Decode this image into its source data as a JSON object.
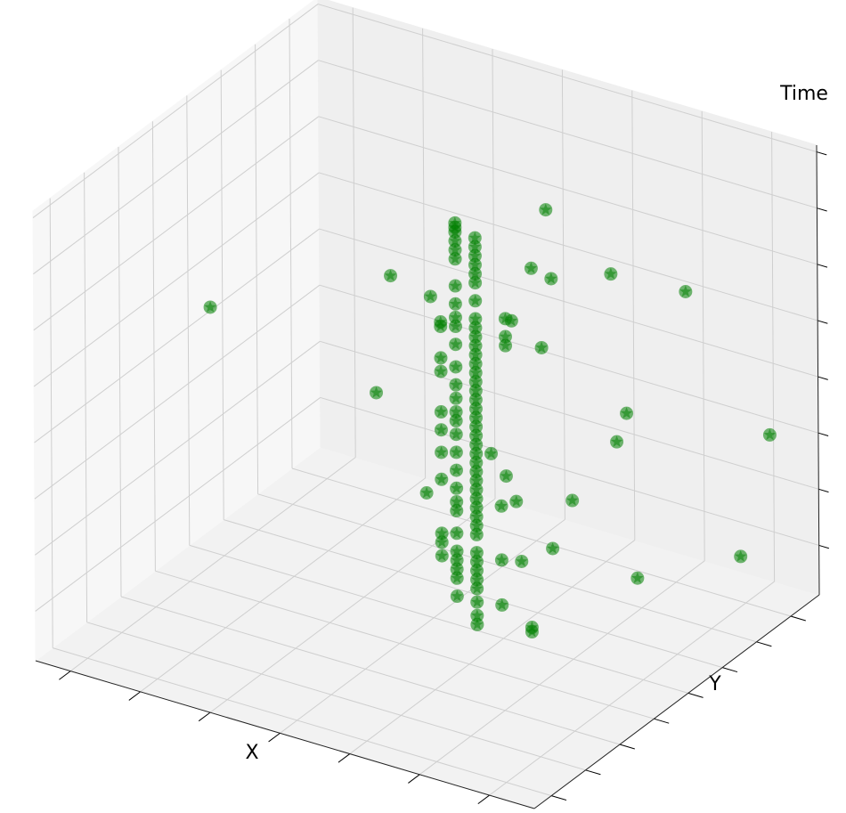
{
  "chart_data": {
    "type": "scatter3d",
    "xlabel": "X",
    "ylabel": "Y",
    "zlabel": "Time",
    "xlim": [
      0,
      10
    ],
    "ylim": [
      0,
      10
    ],
    "zlim": [
      0,
      10
    ],
    "xticks": [
      0.7,
      2.1,
      3.5,
      4.9,
      6.3,
      7.7,
      9.1
    ],
    "yticks": [
      0.6,
      1.8,
      3.0,
      4.2,
      5.4,
      6.6,
      7.8,
      9.0
    ],
    "zticks": [
      1.1,
      2.35,
      3.6,
      4.85,
      6.1,
      7.35,
      8.6,
      9.85
    ],
    "grid": true,
    "series": [
      {
        "color": "#008000",
        "x": [
          5.6,
          5.6,
          5.6,
          5.6,
          5.6,
          5.6,
          5.6,
          5.6,
          5.6,
          5.6,
          5.6,
          5.6,
          5.6,
          5.6,
          5.6,
          5.6,
          5.6,
          5.6,
          5.6,
          5.6,
          5.6,
          5.6,
          5.6,
          5.6,
          5.6,
          5.6,
          5.6,
          5.6,
          6,
          6,
          6,
          6,
          6,
          6,
          6,
          6,
          6,
          6,
          6,
          6,
          6,
          6,
          6,
          6,
          6,
          6,
          6,
          6,
          6,
          6,
          6,
          6,
          6,
          6,
          6,
          6,
          6,
          6,
          6,
          6,
          6,
          6,
          6,
          6,
          6,
          6,
          6,
          6,
          5.3,
          5.3,
          5.3,
          5.3,
          5.3,
          5.3,
          5.3,
          5.3,
          5.3,
          5.3,
          6.6,
          6.6,
          6.6,
          5.7,
          5.4,
          5.8,
          7.0,
          8.5,
          4.3,
          5.1,
          2.4,
          5.0,
          5.6,
          4.0,
          7.3,
          7.1,
          9.6,
          6.3,
          6.6,
          6.2,
          6.8,
          6.5,
          5.8,
          9.0,
          6.5,
          6.9,
          7.5,
          6.5,
          7.1,
          7.1,
          5.0,
          5.3
        ],
        "y": [
          5,
          5,
          5,
          5,
          5,
          5,
          5,
          5,
          5,
          5,
          5,
          5,
          5,
          5,
          5,
          5,
          5,
          5,
          5,
          5,
          5,
          5,
          5,
          5,
          5,
          5,
          5,
          5,
          5,
          5,
          5,
          5,
          5,
          5,
          5,
          5,
          5,
          5,
          5,
          5,
          5,
          5,
          5,
          5,
          5,
          5,
          5,
          5,
          5,
          5,
          5,
          5,
          5,
          5,
          5,
          5,
          5,
          5,
          5,
          5,
          5,
          5,
          5,
          5,
          5,
          5,
          5,
          5,
          5,
          5,
          5,
          5,
          5,
          5,
          5,
          5,
          5,
          5,
          5,
          5,
          5,
          8,
          8,
          8,
          8,
          8,
          5,
          5,
          2,
          8,
          8,
          5,
          8,
          8,
          9,
          5,
          5,
          8,
          5,
          5,
          8,
          9,
          5,
          5,
          8,
          5,
          5,
          5,
          5,
          5
        ],
        "z": [
          9.2,
          9.1,
          9.0,
          8.8,
          8.6,
          8.4,
          7.8,
          7.4,
          7.1,
          6.9,
          6.5,
          6.0,
          5.6,
          5.3,
          5.0,
          4.8,
          4.5,
          4.1,
          3.7,
          3.3,
          3.0,
          2.8,
          2.3,
          1.9,
          1.7,
          1.5,
          1.3,
          0.9,
          9.0,
          8.8,
          8.6,
          8.4,
          8.2,
          8.0,
          7.6,
          7.2,
          7.0,
          6.8,
          6.6,
          6.4,
          6.2,
          6.0,
          5.8,
          5.6,
          5.4,
          5.2,
          5.0,
          4.8,
          4.6,
          4.4,
          4.2,
          4.0,
          3.8,
          3.6,
          3.4,
          3.2,
          3.0,
          2.8,
          2.6,
          2.4,
          2.0,
          1.8,
          1.6,
          1.4,
          1.2,
          0.9,
          0.6,
          0.4,
          6.9,
          6.8,
          6.1,
          5.8,
          4.9,
          4.5,
          4.0,
          2.2,
          2.0,
          1.7,
          7.4,
          7.0,
          6.8,
          8.1,
          6.7,
          6.6,
          7.1,
          7.2,
          7.6,
          7.4,
          7.7,
          5.4,
          5.0,
          4.9,
          4.1,
          3.4,
          3.9,
          4.3,
          3.9,
          1.8,
          3.4,
          3.2,
          0.6,
          1.0,
          2.0,
          2.1,
          0.5,
          1.0,
          0.7,
          0.6,
          3.0,
          3.4
        ]
      }
    ]
  }
}
